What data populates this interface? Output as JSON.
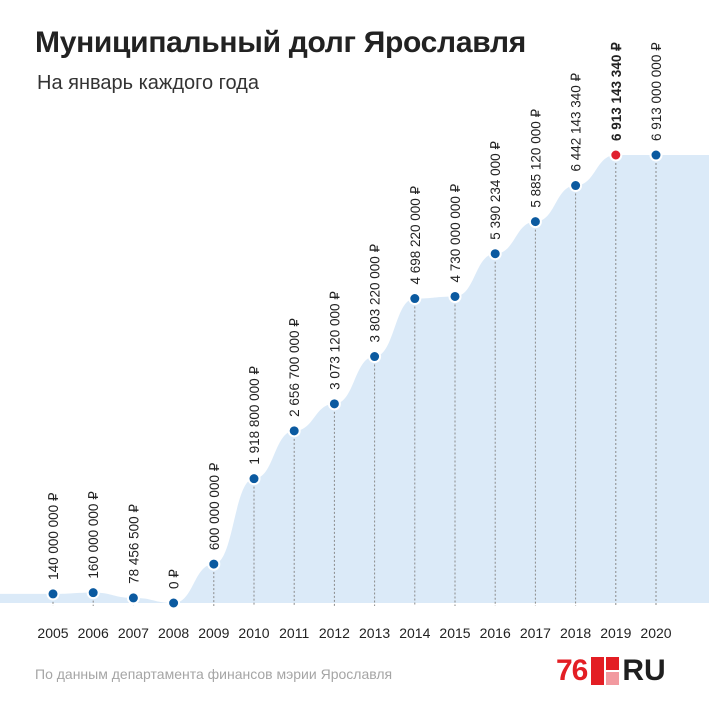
{
  "header": {
    "title": "Муниципальный долг Ярославля",
    "subtitle": "На январь каждого года"
  },
  "footer": {
    "source": "По данным департамента финансов мэрии Ярославля",
    "logo_number": "76",
    "logo_suffix": "RU"
  },
  "colors": {
    "area_fill": "#dbeaf8",
    "point": "#0b5aa0",
    "highlight_point": "#e0202e",
    "label_text": "#222222",
    "brand_red": "#e31e24"
  },
  "chart_data": {
    "type": "area",
    "title": "Муниципальный долг Ярославля",
    "subtitle": "На январь каждого года",
    "x": [
      "2005",
      "2006",
      "2007",
      "2008",
      "2009",
      "2010",
      "2011",
      "2012",
      "2013",
      "2014",
      "2015",
      "2016",
      "2017",
      "2018",
      "2019",
      "2020"
    ],
    "series": [
      {
        "values": [
          140000000,
          160000000,
          78456500,
          0,
          600000000,
          1918800000,
          2656700000,
          3073120000,
          3803220000,
          4698220000,
          4730000000,
          5390234000,
          5885120000,
          6442143340,
          6913143340,
          6913000000
        ]
      }
    ],
    "data_labels": [
      "140 000 000 ₽",
      "160 000 000 ₽",
      "78 456 500 ₽",
      "0 ₽",
      "600 000 000 ₽",
      "1 918 800 000 ₽",
      "2 656 700 000 ₽",
      "3 073 120 000 ₽",
      "3 803 220 000 ₽",
      "4 698 220 000 ₽",
      "4 730 000 000 ₽",
      "5 390 234 000 ₽",
      "5 885 120 000 ₽",
      "6 442 143 340 ₽",
      "6 913 143 340 ₽",
      "6 913 000 000 ₽"
    ],
    "highlight": "2019",
    "ylim": [
      0,
      6913143340
    ],
    "grid": false
  }
}
